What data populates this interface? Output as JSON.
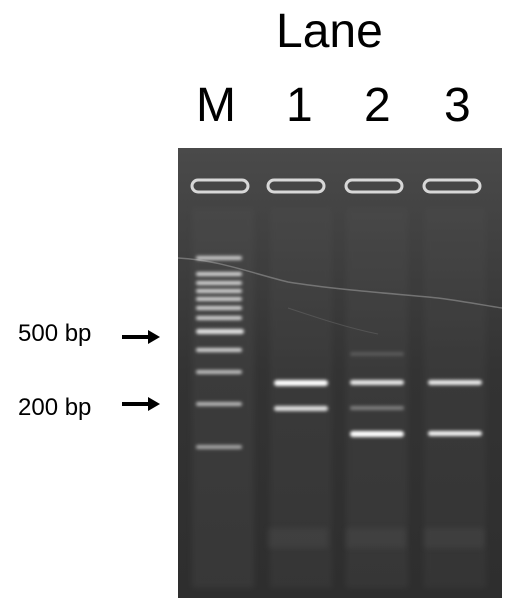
{
  "title": "Lane",
  "lanes": [
    "M",
    "1",
    "2",
    "3"
  ],
  "markers": [
    {
      "label": "500 bp"
    },
    {
      "label": "200 bp"
    }
  ],
  "colors": {
    "gel": "#3a3a3a",
    "band": "#ffffff",
    "text": "#000000"
  }
}
